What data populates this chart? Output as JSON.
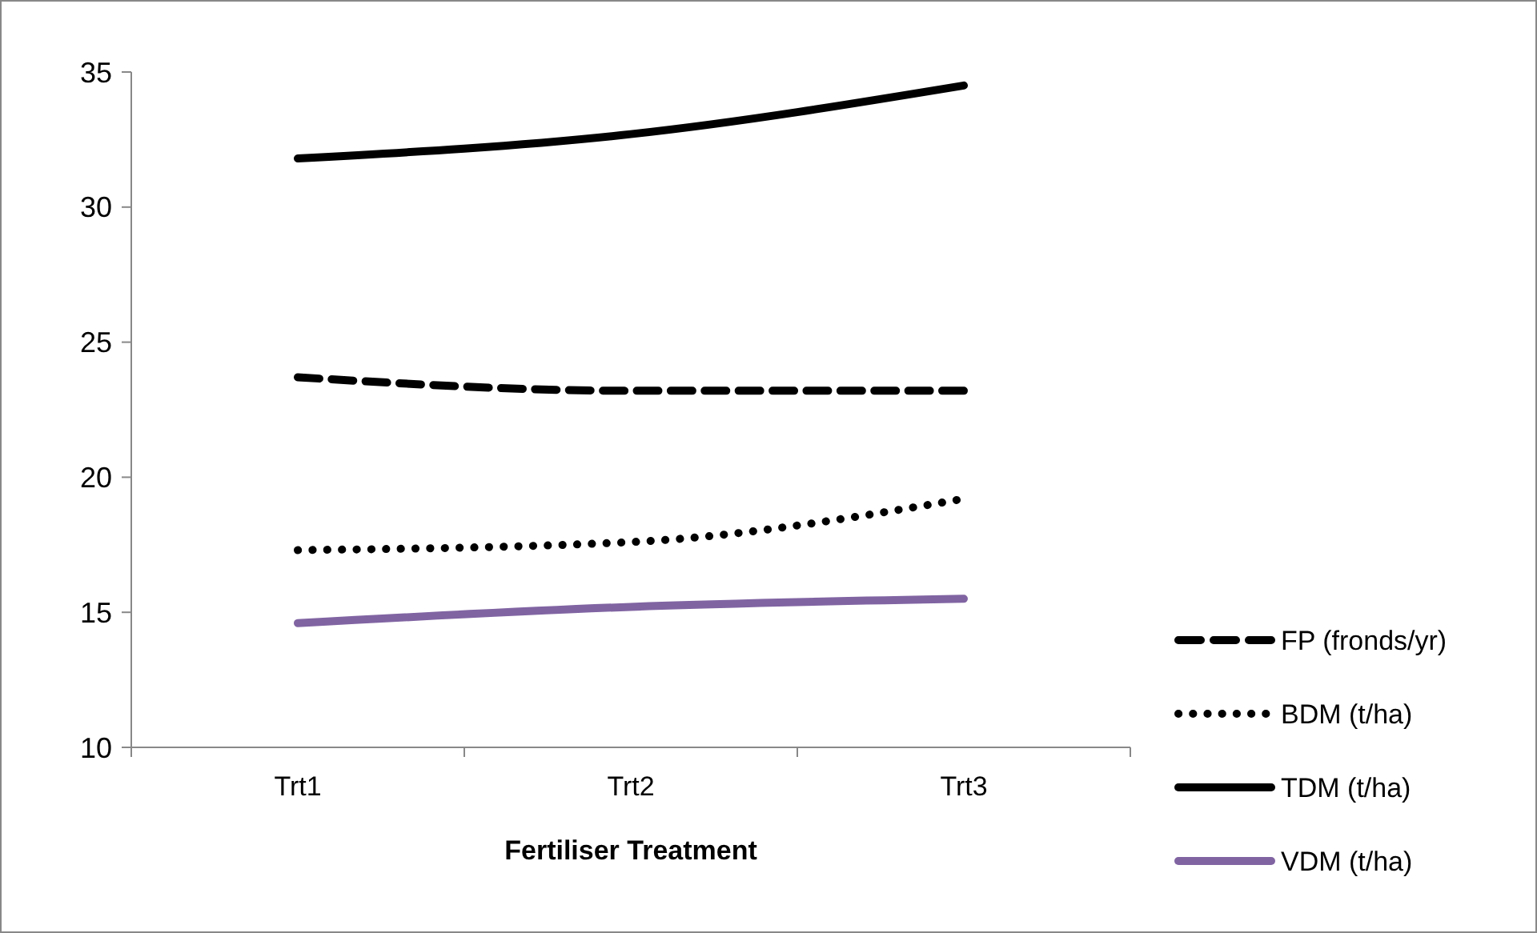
{
  "chart_data": {
    "type": "line",
    "xlabel": "Fertiliser Treatment",
    "categories": [
      "Trt1",
      "Trt2",
      "Trt3"
    ],
    "series": [
      {
        "name": "FP (fronds/yr)",
        "color": "#000000",
        "line_style": "dashed",
        "values": [
          23.7,
          23.2,
          23.2
        ]
      },
      {
        "name": "BDM (t/ha)",
        "color": "#000000",
        "line_style": "dotted",
        "values": [
          17.3,
          17.6,
          19.2
        ]
      },
      {
        "name": "TDM (t/ha)",
        "color": "#000000",
        "line_style": "solid",
        "values": [
          31.8,
          32.7,
          34.5
        ]
      },
      {
        "name": "VDM (t/ha)",
        "color": "#8064a2",
        "line_style": "solid",
        "values": [
          14.6,
          15.2,
          15.5
        ]
      }
    ],
    "ylim": [
      10,
      35
    ],
    "yticks": [
      10,
      15,
      20,
      25,
      30,
      35
    ],
    "grid": false,
    "legend": "right"
  }
}
